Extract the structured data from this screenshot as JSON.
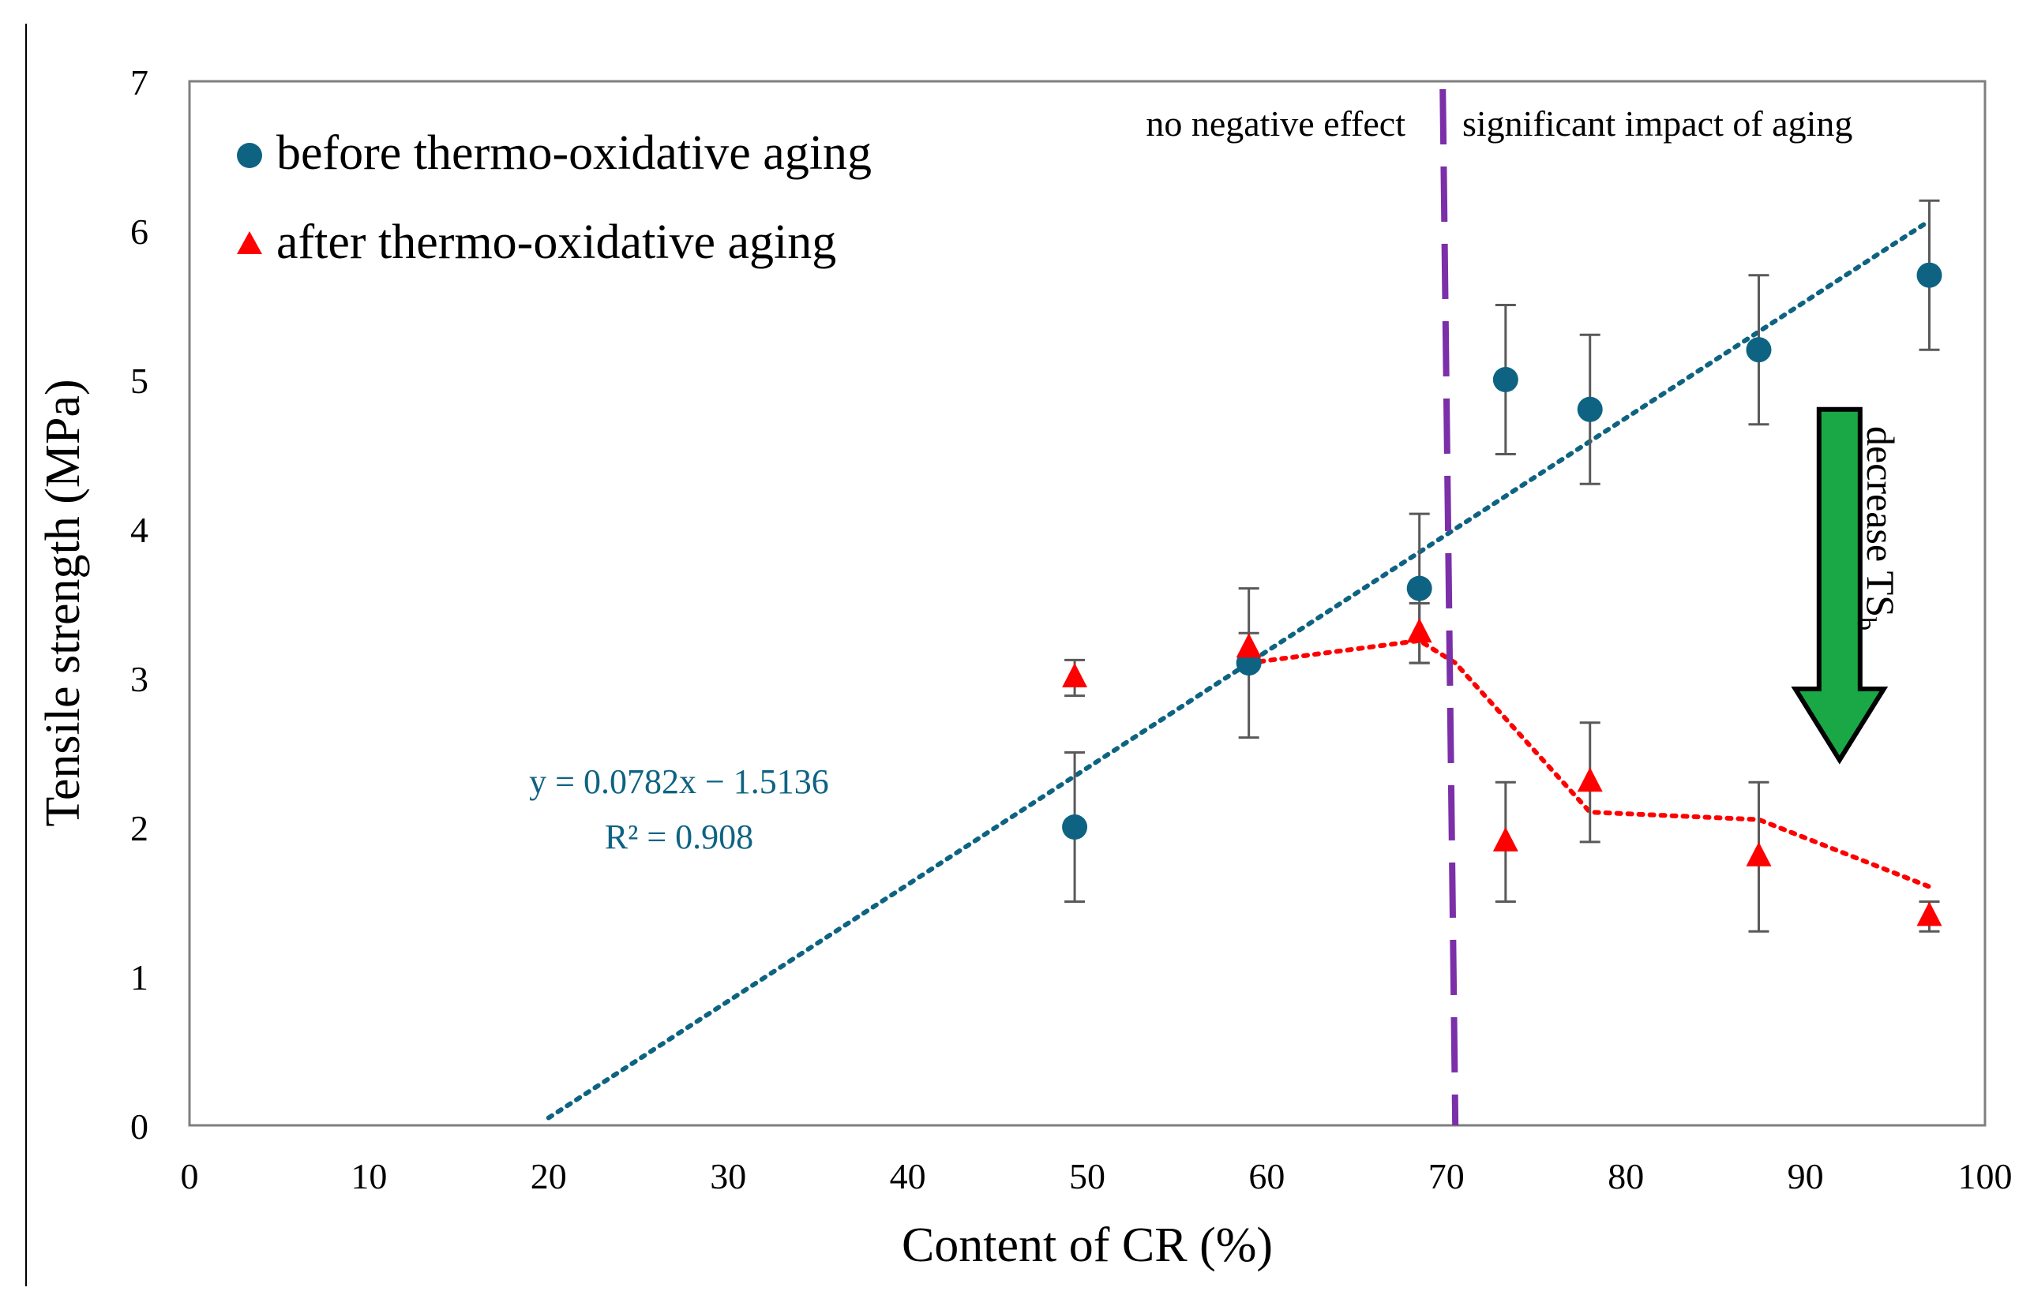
{
  "chart_data": {
    "type": "scatter",
    "xlabel": "Content of CR (%)",
    "ylabel": "Tensile strength (MPa)",
    "xlim": [
      0,
      100
    ],
    "ylim": [
      0,
      7
    ],
    "x_ticks": [
      0,
      10,
      20,
      30,
      40,
      50,
      60,
      70,
      80,
      90,
      100
    ],
    "y_ticks": [
      0,
      1,
      2,
      3,
      4,
      5,
      6,
      7
    ],
    "x_tick_labels": [
      "0",
      "10",
      "20",
      "30",
      "40",
      "50",
      "60",
      "70",
      "80",
      "90",
      "100"
    ],
    "y_tick_labels": [
      "0",
      "1",
      "2",
      "3",
      "4",
      "5",
      "6",
      "7"
    ],
    "series": [
      {
        "name": "before thermo-oxidative aging",
        "color": "#0e6382",
        "marker": "circle",
        "points": [
          {
            "x": 49.3,
            "y": 2.0,
            "err": 0.5
          },
          {
            "x": 59.0,
            "y": 3.1,
            "err": 0.5
          },
          {
            "x": 68.5,
            "y": 3.6,
            "err": 0.5
          },
          {
            "x": 73.3,
            "y": 5.0,
            "err": 0.5
          },
          {
            "x": 78.0,
            "y": 4.8,
            "err": 0.5
          },
          {
            "x": 87.4,
            "y": 5.2,
            "err": 0.5
          },
          {
            "x": 96.9,
            "y": 5.7,
            "err": 0.5
          }
        ]
      },
      {
        "name": "after thermo-oxidative aging",
        "color": "#ff0000",
        "marker": "triangle",
        "points": [
          {
            "x": 49.3,
            "y": 3.0,
            "err": 0.12
          },
          {
            "x": 59.0,
            "y": 3.2,
            "err": 0.1
          },
          {
            "x": 68.5,
            "y": 3.3,
            "err": 0.2
          },
          {
            "x": 73.3,
            "y": 1.9,
            "err": 0.4
          },
          {
            "x": 78.0,
            "y": 2.3,
            "err": 0.4
          },
          {
            "x": 87.4,
            "y": 1.8,
            "err": 0.5
          },
          {
            "x": 96.9,
            "y": 1.4,
            "err": 0.1
          }
        ]
      }
    ],
    "trendline": {
      "color": "#0e6382",
      "slope": 0.0782,
      "intercept": -1.5136,
      "x_range": [
        20,
        96.9
      ],
      "equation": "y = 0.0782x − 1.5136",
      "r2": "R² = 0.908"
    },
    "red_trend": {
      "color": "#ff0000",
      "points": [
        {
          "x": 59.0,
          "y": 3.1
        },
        {
          "x": 68.5,
          "y": 3.25
        },
        {
          "x": 70.5,
          "y": 3.1
        },
        {
          "x": 78.0,
          "y": 2.1
        },
        {
          "x": 87.4,
          "y": 2.05
        },
        {
          "x": 96.9,
          "y": 1.6
        }
      ]
    },
    "divider": {
      "color": "#7b2fa8",
      "x_top": 69.8,
      "x_bottom": 70.5,
      "label_left": "no negative effect",
      "label_right": "significant impact of aging"
    },
    "arrow": {
      "color": "#1aa847",
      "x": 91.9,
      "y_top": 4.8,
      "y_bottom": 2.45,
      "label": "decrease TS",
      "label_sub": "b"
    },
    "legend": {
      "position": "top-left",
      "entries": [
        {
          "label": "before thermo-oxidative aging",
          "marker": "circle",
          "color": "#0e6382"
        },
        {
          "label": "after thermo-oxidative aging",
          "marker": "triangle",
          "color": "#ff0000"
        }
      ]
    }
  }
}
